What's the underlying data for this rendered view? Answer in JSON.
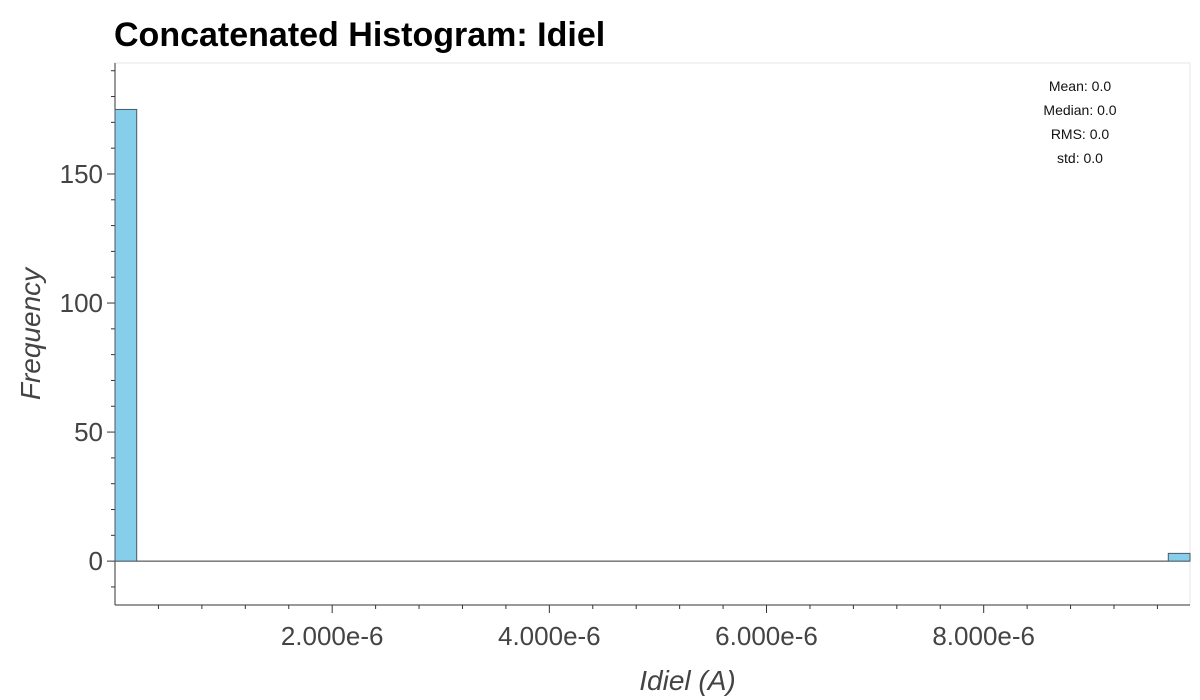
{
  "chart_data": {
    "type": "bar",
    "title": "Concatenated Histogram: Idiel",
    "xlabel": "Idiel (A)",
    "ylabel": "Frequency",
    "xlim": [
      0,
      9.9e-06
    ],
    "ylim": [
      -17,
      193
    ],
    "x_ticks": [
      2e-06,
      4e-06,
      6e-06,
      8e-06
    ],
    "x_tick_labels": [
      "2.000e-6",
      "4.000e-6",
      "6.000e-6",
      "8.000e-6"
    ],
    "y_ticks": [
      0,
      50,
      100,
      150
    ],
    "y_tick_labels": [
      "0",
      "50",
      "100",
      "150"
    ],
    "bins": [
      {
        "x0": 0,
        "x1": 2e-07,
        "count": 175
      },
      {
        "x0": 9.7e-06,
        "x1": 9.9e-06,
        "count": 3
      }
    ],
    "bar_color": "#87CEEB",
    "stats": [
      "Mean: 0.0",
      "Median: 0.0",
      "RMS: 0.0",
      "std: 0.0"
    ],
    "grid": false
  }
}
